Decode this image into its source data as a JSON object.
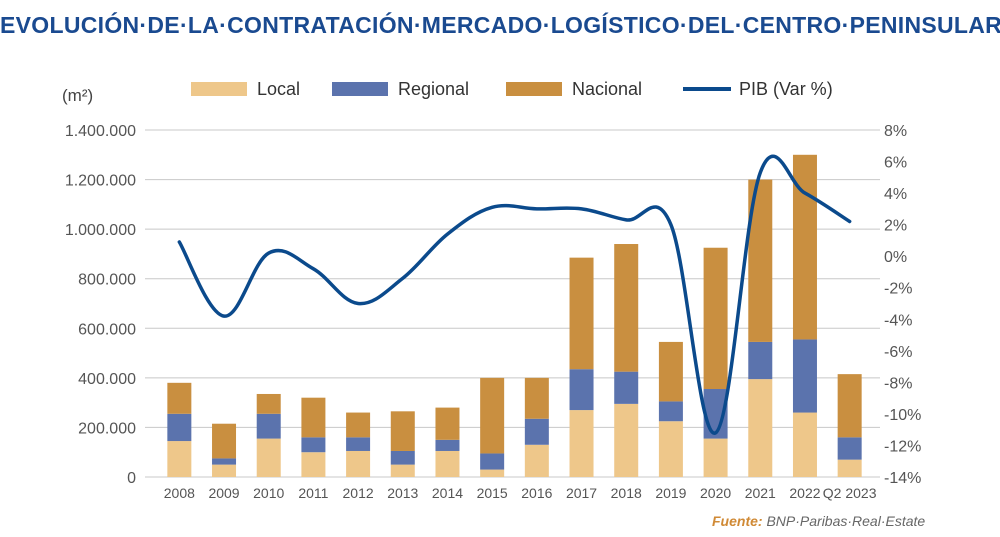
{
  "title": "EVOLUCIÓN·DE·LA·CONTRATACIÓN·MERCADO·LOGÍSTICO·DEL·CENTRO·PENINSULAR",
  "unit_label": "(m²)",
  "source": {
    "label": "Fuente:",
    "text": "BNP·Paribas·Real·Estate"
  },
  "colors": {
    "local": "#eec78a",
    "regional": "#5b73ad",
    "nacional": "#c98f40",
    "pib": "#0b4a8c",
    "grid": "#c8c8c8",
    "title": "#1a4a90"
  },
  "chart_data": {
    "type": "bar",
    "stacked": true,
    "categories": [
      "2008",
      "2009",
      "2010",
      "2011",
      "2012",
      "2013",
      "2014",
      "2015",
      "2016",
      "2017",
      "2018",
      "2019",
      "2020",
      "2021",
      "2022",
      "Q2 2023"
    ],
    "series": [
      {
        "name": "Local",
        "values": [
          145000,
          50000,
          155000,
          100000,
          105000,
          50000,
          105000,
          30000,
          130000,
          270000,
          295000,
          225000,
          155000,
          395000,
          260000,
          70000
        ]
      },
      {
        "name": "Regional",
        "values": [
          110000,
          25000,
          100000,
          60000,
          55000,
          55000,
          45000,
          65000,
          105000,
          165000,
          130000,
          80000,
          200000,
          150000,
          295000,
          90000
        ]
      },
      {
        "name": "Nacional",
        "values": [
          125000,
          140000,
          80000,
          160000,
          100000,
          160000,
          130000,
          305000,
          165000,
          450000,
          515000,
          240000,
          570000,
          655000,
          745000,
          255000
        ]
      }
    ],
    "line": {
      "name": "PIB (Var %)",
      "axis": "right",
      "values": [
        0.9,
        -3.8,
        0.2,
        -0.8,
        -3.0,
        -1.4,
        1.4,
        3.1,
        3.0,
        3.0,
        2.3,
        2.0,
        -11.2,
        5.3,
        4.0,
        2.2
      ]
    },
    "y_left": {
      "min": 0,
      "max": 1400000,
      "ticks": [
        "0",
        "200.000",
        "400.000",
        "600.000",
        "800.000",
        "1.000.000",
        "1.200.000",
        "1.400.000"
      ]
    },
    "y_right": {
      "min": -14,
      "max": 8,
      "ticks": [
        "-14%",
        "-12%",
        "-10%",
        "-8%",
        "-6%",
        "-4%",
        "-2%",
        "0%",
        "2%",
        "4%",
        "6%",
        "8%"
      ]
    },
    "legend": {
      "placement": "top",
      "items": [
        "Local",
        "Regional",
        "Nacional",
        "PIB (Var %)"
      ]
    },
    "grid": true
  }
}
